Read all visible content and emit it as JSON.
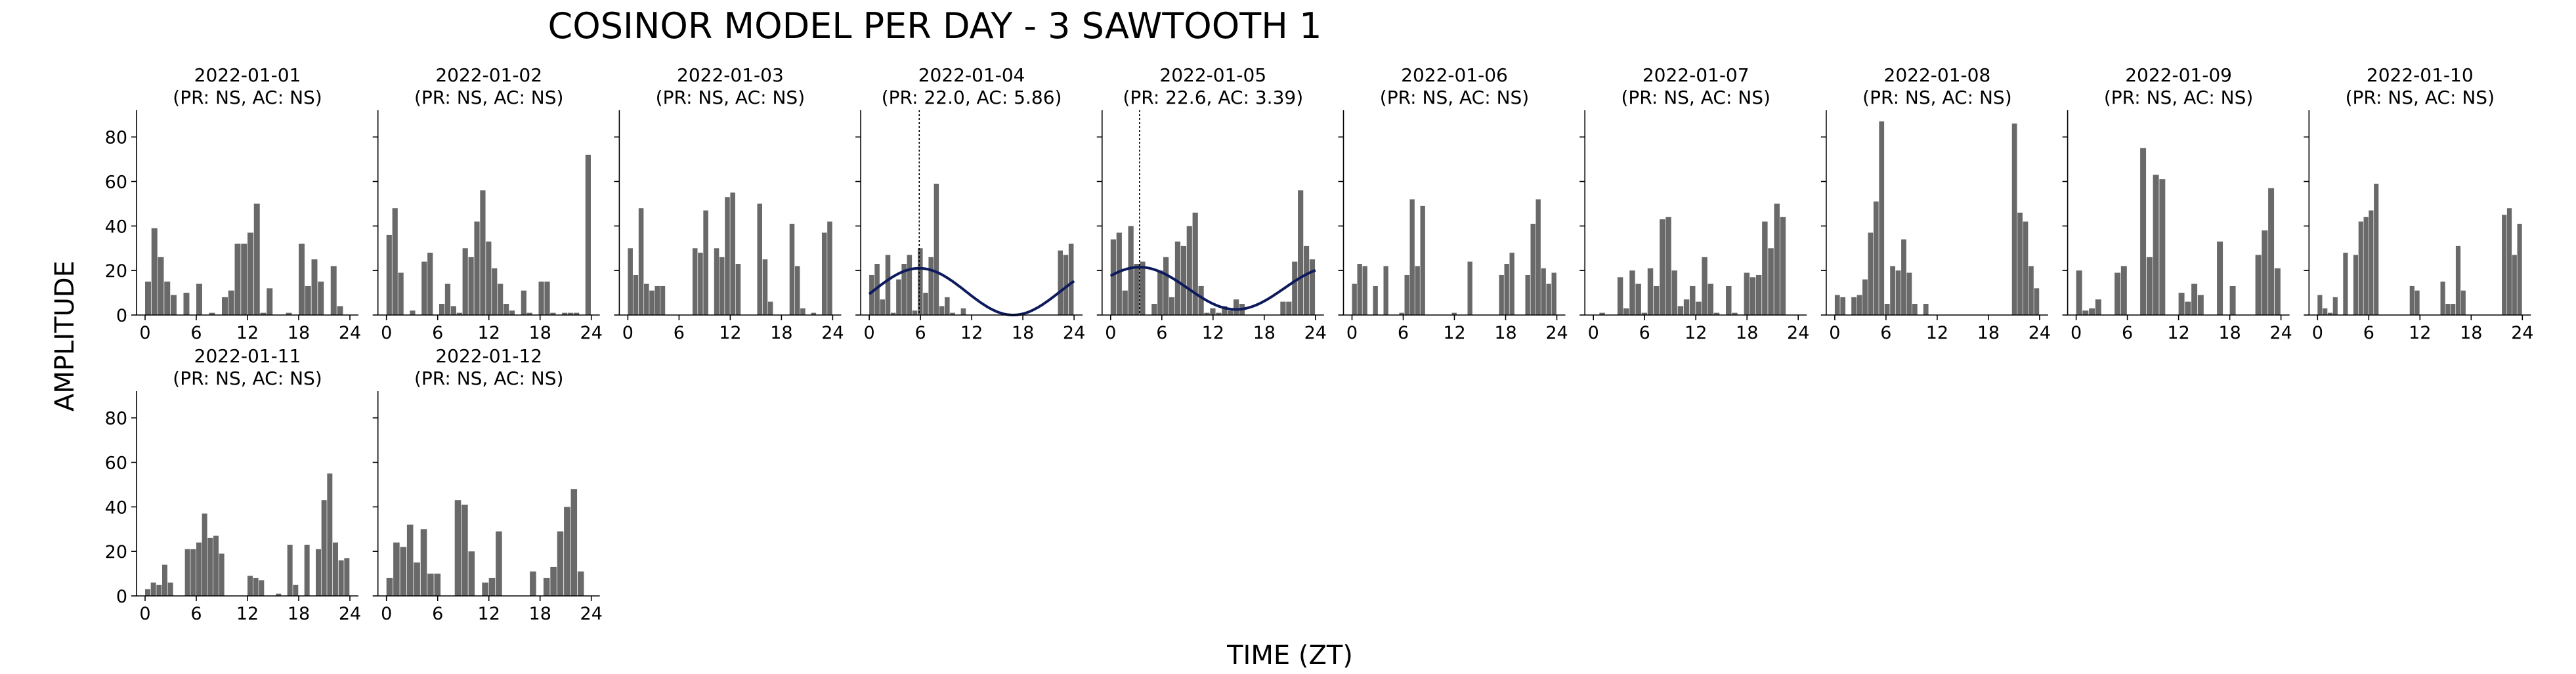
{
  "figure": {
    "title": "COSINOR MODEL PER DAY - 3 SAWTOOTH 1",
    "xlabel": "TIME (ZT)",
    "ylabel": "AMPLITUDE",
    "bar_color": "#696969",
    "fit_color": "#0d1a5c"
  },
  "chart_data": {
    "type": "bar",
    "layout": "small-multiples, 10 columns",
    "xlim": [
      -1,
      25
    ],
    "ylim": [
      0,
      92
    ],
    "xticks": [
      0,
      6,
      12,
      18,
      24
    ],
    "yticks": [
      0,
      20,
      40,
      60,
      80
    ],
    "xlabel": "TIME (ZT)",
    "ylabel": "AMPLITUDE",
    "panels": [
      {
        "date": "2022-01-01",
        "annotation": "(PR: NS, AC: NS)",
        "values": [
          15,
          39,
          26,
          15,
          9,
          0,
          10,
          0,
          14,
          0,
          1,
          0,
          8,
          11,
          32,
          32,
          37,
          50,
          1,
          12,
          0,
          0,
          1,
          0,
          32,
          13,
          25,
          15,
          0,
          22,
          4,
          0
        ]
      },
      {
        "date": "2022-01-02",
        "annotation": "(PR: NS, AC: NS)",
        "values": [
          36,
          48,
          19,
          0,
          2,
          0,
          24,
          28,
          0,
          5,
          14,
          4,
          1,
          30,
          26,
          42,
          56,
          33,
          21,
          14,
          5,
          2,
          0,
          11,
          1,
          0,
          15,
          15,
          1,
          0,
          1,
          1,
          1,
          0,
          72
        ]
      },
      {
        "date": "2022-01-03",
        "annotation": "(PR: NS, AC: NS)",
        "values": [
          30,
          18,
          48,
          14,
          11,
          13,
          13,
          0,
          0,
          0,
          0,
          0,
          30,
          28,
          47,
          0,
          30,
          26,
          53,
          55,
          23,
          0,
          0,
          0,
          50,
          25,
          6,
          0,
          0,
          0,
          41,
          22,
          3,
          0,
          1,
          0,
          37,
          42
        ]
      },
      {
        "date": "2022-01-04",
        "annotation": "(PR: 22.0, AC: 5.86)",
        "acrophase": 5.86,
        "fit": {
          "mesor": 10.5,
          "amplitude": 10.5,
          "acrophase": 5.86,
          "period": 22.0
        },
        "values": [
          18,
          23,
          7,
          27,
          1,
          16,
          23,
          27,
          2,
          30,
          10,
          26,
          59,
          4,
          8,
          1,
          0,
          3,
          0,
          0,
          0,
          0,
          0,
          0,
          0,
          0,
          0,
          0,
          0,
          0,
          0,
          0,
          0,
          0,
          0,
          29,
          27,
          32
        ]
      },
      {
        "date": "2022-01-05",
        "annotation": "(PR: 22.6, AC: 3.39)",
        "acrophase": 3.39,
        "fit": {
          "mesor": 12.0,
          "amplitude": 9.5,
          "acrophase": 3.39,
          "period": 22.6
        },
        "values": [
          34,
          37,
          11,
          40,
          23,
          24,
          0,
          5,
          20,
          26,
          8,
          33,
          31,
          40,
          46,
          13,
          1,
          3,
          1,
          4,
          2,
          7,
          5,
          0,
          0,
          0,
          0,
          0,
          0,
          6,
          6,
          24,
          56,
          31,
          25
        ]
      },
      {
        "date": "2022-01-06",
        "annotation": "(PR: NS, AC: NS)",
        "values": [
          14,
          23,
          22,
          0,
          13,
          0,
          22,
          0,
          0,
          1,
          18,
          52,
          22,
          49,
          0,
          0,
          0,
          0,
          0,
          1,
          0,
          0,
          24,
          0,
          0,
          0,
          0,
          0,
          18,
          23,
          28,
          0,
          0,
          18,
          41,
          52,
          21,
          14,
          19
        ]
      },
      {
        "date": "2022-01-07",
        "annotation": "(PR: NS, AC: NS)",
        "values": [
          0,
          1,
          0,
          0,
          17,
          3,
          20,
          14,
          1,
          21,
          13,
          43,
          44,
          20,
          4,
          7,
          13,
          6,
          26,
          14,
          1,
          0,
          13,
          1,
          0,
          19,
          17,
          18,
          42,
          30,
          50,
          44,
          0,
          0
        ]
      },
      {
        "date": "2022-01-08",
        "annotation": "(PR: NS, AC: NS)",
        "values": [
          9,
          8,
          0,
          8,
          9,
          16,
          37,
          51,
          87,
          5,
          22,
          20,
          34,
          19,
          5,
          0,
          5,
          0,
          0,
          0,
          0,
          0,
          0,
          0,
          0,
          0,
          0,
          0,
          0,
          0,
          0,
          0,
          86,
          46,
          42,
          22,
          12
        ]
      },
      {
        "date": "2022-01-09",
        "annotation": "(PR: NS, AC: NS)",
        "values": [
          20,
          2,
          3,
          7,
          0,
          0,
          19,
          22,
          0,
          0,
          75,
          26,
          63,
          61,
          0,
          0,
          10,
          6,
          14,
          9,
          0,
          0,
          33,
          0,
          13,
          0,
          0,
          0,
          27,
          38,
          57,
          21
        ]
      },
      {
        "date": "2022-01-10",
        "annotation": "(PR: NS, AC: NS)",
        "values": [
          9,
          3,
          1,
          8,
          0,
          28,
          0,
          27,
          42,
          44,
          47,
          59,
          0,
          0,
          0,
          0,
          0,
          0,
          13,
          11,
          0,
          0,
          0,
          0,
          15,
          5,
          5,
          31,
          11,
          0,
          0,
          0,
          0,
          0,
          0,
          0,
          45,
          48,
          27,
          41
        ]
      },
      {
        "date": "2022-01-11",
        "annotation": "(PR: NS, AC: NS)",
        "values": [
          3,
          6,
          5,
          14,
          6,
          0,
          0,
          21,
          21,
          24,
          37,
          26,
          27,
          19,
          0,
          0,
          0,
          0,
          9,
          8,
          7,
          0,
          0,
          1,
          0,
          23,
          5,
          0,
          23,
          0,
          21,
          43,
          55,
          24,
          16,
          17
        ]
      },
      {
        "date": "2022-01-12",
        "annotation": "(PR: NS, AC: NS)",
        "values": [
          8,
          24,
          22,
          32,
          15,
          30,
          10,
          10,
          0,
          0,
          43,
          41,
          20,
          0,
          6,
          8,
          29,
          0,
          0,
          0,
          0,
          11,
          0,
          8,
          13,
          29,
          40,
          48,
          11,
          0
        ]
      }
    ]
  }
}
